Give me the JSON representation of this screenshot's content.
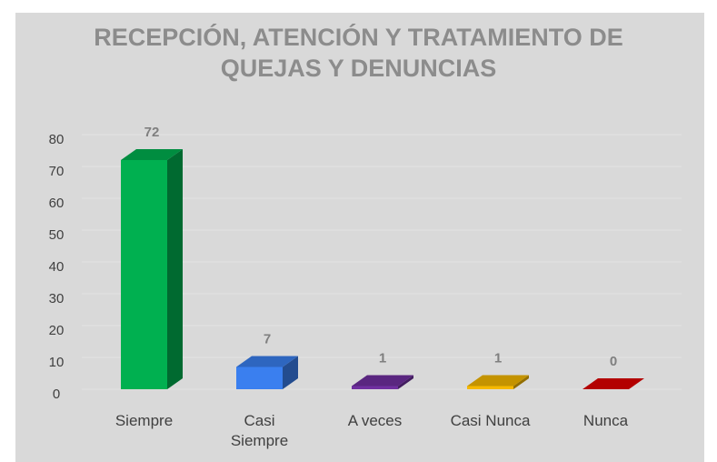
{
  "chart_data": {
    "type": "bar3d",
    "title": "RECEPCIÓN, ATENCIÓN Y TRATAMIENTO DE QUEJAS Y DENUNCIAS",
    "categories": [
      "Siempre",
      "Casi Siempre",
      "A veces",
      "Casi Nunca",
      "Nunca"
    ],
    "values": [
      72,
      7,
      1,
      1,
      0
    ],
    "colors": [
      "#00b050",
      "#3a7fef",
      "#7030a0",
      "#f5b800",
      "#e00000"
    ],
    "ylim": [
      0,
      80
    ],
    "yticks": [
      0,
      10,
      20,
      30,
      40,
      50,
      60,
      70,
      80
    ],
    "grid": true
  }
}
